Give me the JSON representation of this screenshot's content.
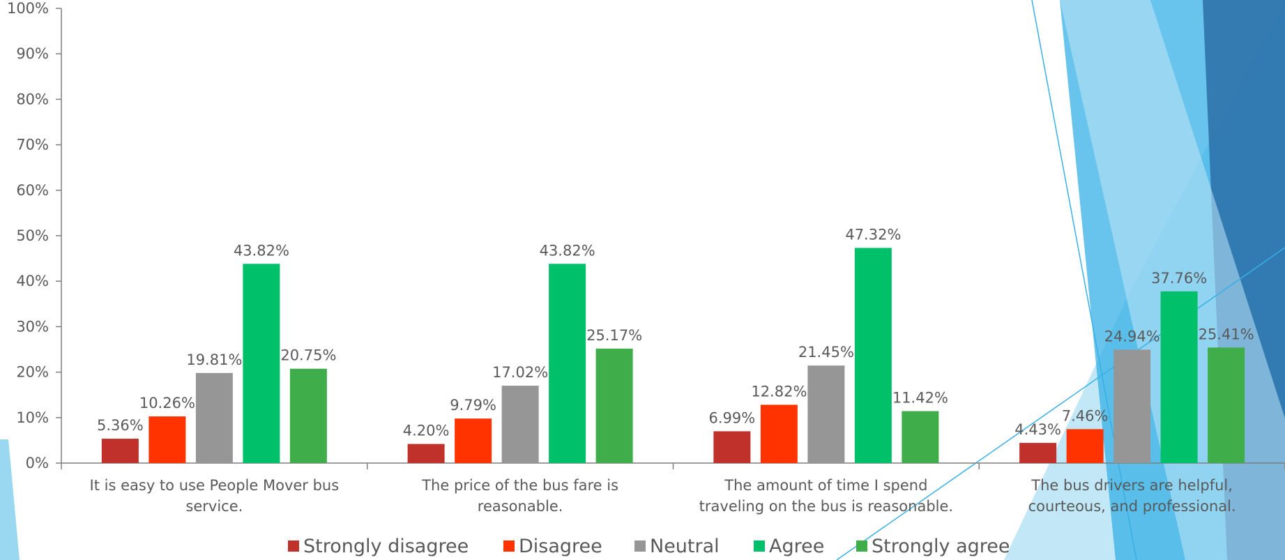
{
  "chart_data": {
    "type": "bar",
    "categories": [
      [
        "It is easy to use People Mover bus",
        "service."
      ],
      [
        "The price of the bus fare is",
        "reasonable."
      ],
      [
        "The amount of time I spend",
        "traveling on the bus is reasonable."
      ],
      [
        "The bus drivers are helpful,",
        "courteous, and professional."
      ]
    ],
    "series": [
      {
        "name": "Strongly disagree",
        "values": [
          5.36,
          4.2,
          6.99,
          4.43
        ],
        "labels": [
          "5.36%",
          "4.20%",
          "6.99%",
          "4.43%"
        ]
      },
      {
        "name": "Disagree",
        "values": [
          10.26,
          9.79,
          12.82,
          7.46
        ],
        "labels": [
          "10.26%",
          "9.79%",
          "12.82%",
          "7.46%"
        ]
      },
      {
        "name": "Neutral",
        "values": [
          19.81,
          17.02,
          21.45,
          24.94
        ],
        "labels": [
          "19.81%",
          "17.02%",
          "21.45%",
          "24.94%"
        ]
      },
      {
        "name": "Agree",
        "values": [
          43.82,
          43.82,
          47.32,
          37.76
        ],
        "labels": [
          "43.82%",
          "43.82%",
          "47.32%",
          "37.76%"
        ]
      },
      {
        "name": "Strongly agree",
        "values": [
          20.75,
          25.17,
          11.42,
          25.41
        ],
        "labels": [
          "20.75%",
          "25.17%",
          "11.42%",
          "25.41%"
        ]
      }
    ],
    "colors": [
      "#c0312b",
      "#ff3300",
      "#969696",
      "#00c06a",
      "#3fae4a"
    ],
    "ylim": [
      0,
      100
    ],
    "yticks": [
      "0%",
      "10%",
      "20%",
      "30%",
      "40%",
      "50%",
      "60%",
      "70%",
      "80%",
      "90%",
      "100%"
    ],
    "legend_position": "bottom",
    "grid": false,
    "title": "",
    "xlabel": "",
    "ylabel": ""
  },
  "colors": {
    "axis": "#7f7f7f",
    "text": "#595959",
    "deco_light": "#8fd3f0",
    "deco_mid": "#36b0e6",
    "deco_dark": "#2b6fa8"
  }
}
